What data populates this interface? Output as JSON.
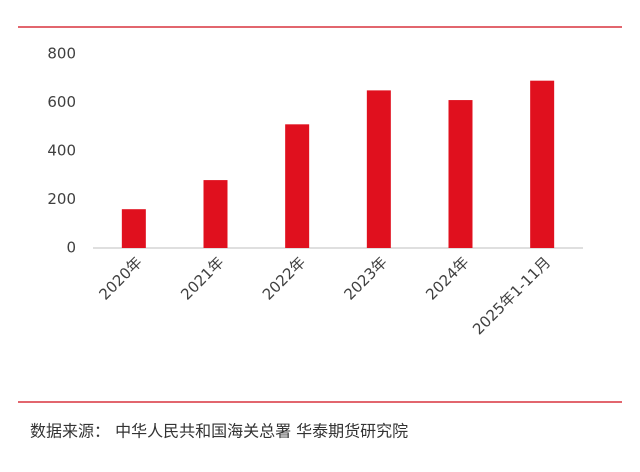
{
  "chart_data": {
    "type": "bar",
    "categories": [
      "2020年",
      "2021年",
      "2022年",
      "2023年",
      "2024年",
      "2025年1-11月"
    ],
    "values": [
      160,
      280,
      510,
      650,
      610,
      690
    ],
    "color": "#e0101e",
    "ylim": [
      0,
      800
    ],
    "yticks": [
      0,
      200,
      400,
      600,
      800
    ],
    "grid": false,
    "source": "数据来源：  中华人民共和国海关总署  华泰期货研究院"
  }
}
